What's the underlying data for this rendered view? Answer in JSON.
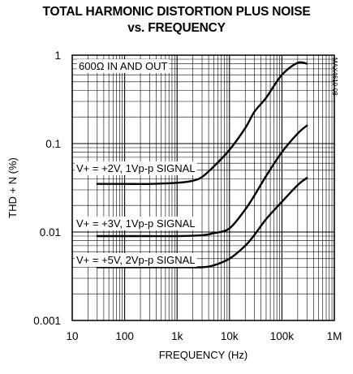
{
  "chart_data": {
    "type": "line",
    "title": "TOTAL HARMONIC DISTORTION PLUS NOISE",
    "subtitle": "vs. FREQUENCY",
    "xlabel": "FREQUENCY (Hz)",
    "ylabel": "THD + N (%)",
    "x_scale": "log",
    "y_scale": "log",
    "xlim": [
      10,
      1000000
    ],
    "ylim": [
      0.001,
      1
    ],
    "grid": true,
    "x_ticks": [
      {
        "value": 10,
        "label": "10"
      },
      {
        "value": 100,
        "label": "100"
      },
      {
        "value": 1000,
        "label": "1k"
      },
      {
        "value": 10000,
        "label": "10k"
      },
      {
        "value": 100000,
        "label": "100k"
      },
      {
        "value": 1000000,
        "label": "1M"
      }
    ],
    "y_ticks": [
      {
        "value": 1,
        "label": "1"
      },
      {
        "value": 0.1,
        "label": "0.1"
      },
      {
        "value": 0.01,
        "label": "0.01"
      },
      {
        "value": 0.001,
        "label": "0.001"
      }
    ],
    "annotations": {
      "condition": "600Ω IN AND OUT",
      "part_number": "MAX4610-08"
    },
    "series": [
      {
        "name": "V+ = +2V, 1Vp-p SIGNAL",
        "x": [
          30,
          100,
          300,
          1000,
          2000,
          3000,
          5000,
          10000,
          20000,
          30000,
          50000,
          100000,
          200000,
          300000
        ],
        "y": [
          0.035,
          0.035,
          0.035,
          0.036,
          0.038,
          0.042,
          0.055,
          0.085,
          0.15,
          0.23,
          0.33,
          0.6,
          0.82,
          0.8
        ]
      },
      {
        "name": "V+ = +3V, 1Vp-p SIGNAL",
        "x": [
          30,
          100,
          300,
          1000,
          3000,
          5000,
          10000,
          20000,
          30000,
          50000,
          100000,
          200000,
          300000
        ],
        "y": [
          0.009,
          0.009,
          0.009,
          0.009,
          0.0092,
          0.0097,
          0.011,
          0.018,
          0.026,
          0.043,
          0.08,
          0.13,
          0.16
        ]
      },
      {
        "name": "V+ = +5V, 2Vp-p SIGNAL",
        "x": [
          30,
          100,
          300,
          1000,
          3000,
          5000,
          10000,
          20000,
          30000,
          50000,
          100000,
          200000,
          300000
        ],
        "y": [
          0.004,
          0.004,
          0.004,
          0.004,
          0.004,
          0.0042,
          0.005,
          0.007,
          0.0093,
          0.014,
          0.022,
          0.034,
          0.041
        ]
      }
    ]
  }
}
